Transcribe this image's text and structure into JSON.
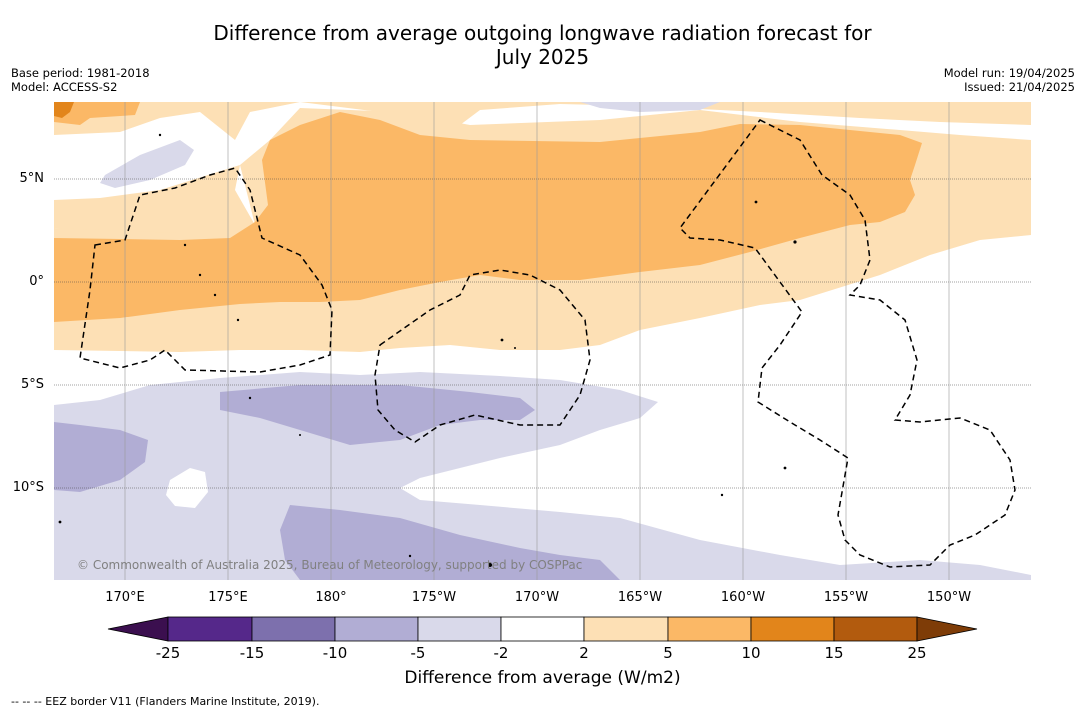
{
  "title": {
    "line1": "Difference from average outgoing longwave radiation forecast for",
    "line2": "July 2025"
  },
  "meta_left": {
    "base_period": "Base period: 1981-2018",
    "model": "Model: ACCESS-S2"
  },
  "meta_right": {
    "model_run": "Model run: 19/04/2025",
    "issued": "Issued: 21/04/2025"
  },
  "map": {
    "latitude_labels": [
      "5°N",
      "0°",
      "5°S",
      "10°S"
    ],
    "longitude_labels": [
      "170°E",
      "175°E",
      "180°",
      "175°W",
      "170°W",
      "165°W",
      "160°W",
      "155°W",
      "150°W"
    ],
    "copyright": "© Commonwealth of Australia 2025, Bureau of Meteorology, supported by COSPPac",
    "field": "Difference from average outgoing longwave radiation",
    "pattern": "Positive anomaly band (+2 to +10 W/m2) across the equator north of 5°S; negative anomaly (-2 to -10 W/m2) south of 5°S"
  },
  "colorbar": {
    "ticks": [
      "-25",
      "-15",
      "-10",
      "-5",
      "-2",
      "2",
      "5",
      "10",
      "15",
      "25"
    ],
    "colors": [
      "#3b0f4f",
      "#55288a",
      "#7d70ad",
      "#b1add4",
      "#d9d9ea",
      "#ffffff",
      "#fde0b5",
      "#fbb866",
      "#e2851b",
      "#b25b0e",
      "#7e3c07"
    ],
    "label": "Difference from average (W/m2)"
  },
  "footnote": "--  --  -- EEZ border V11 (Flanders Marine Institute, 2019)."
}
